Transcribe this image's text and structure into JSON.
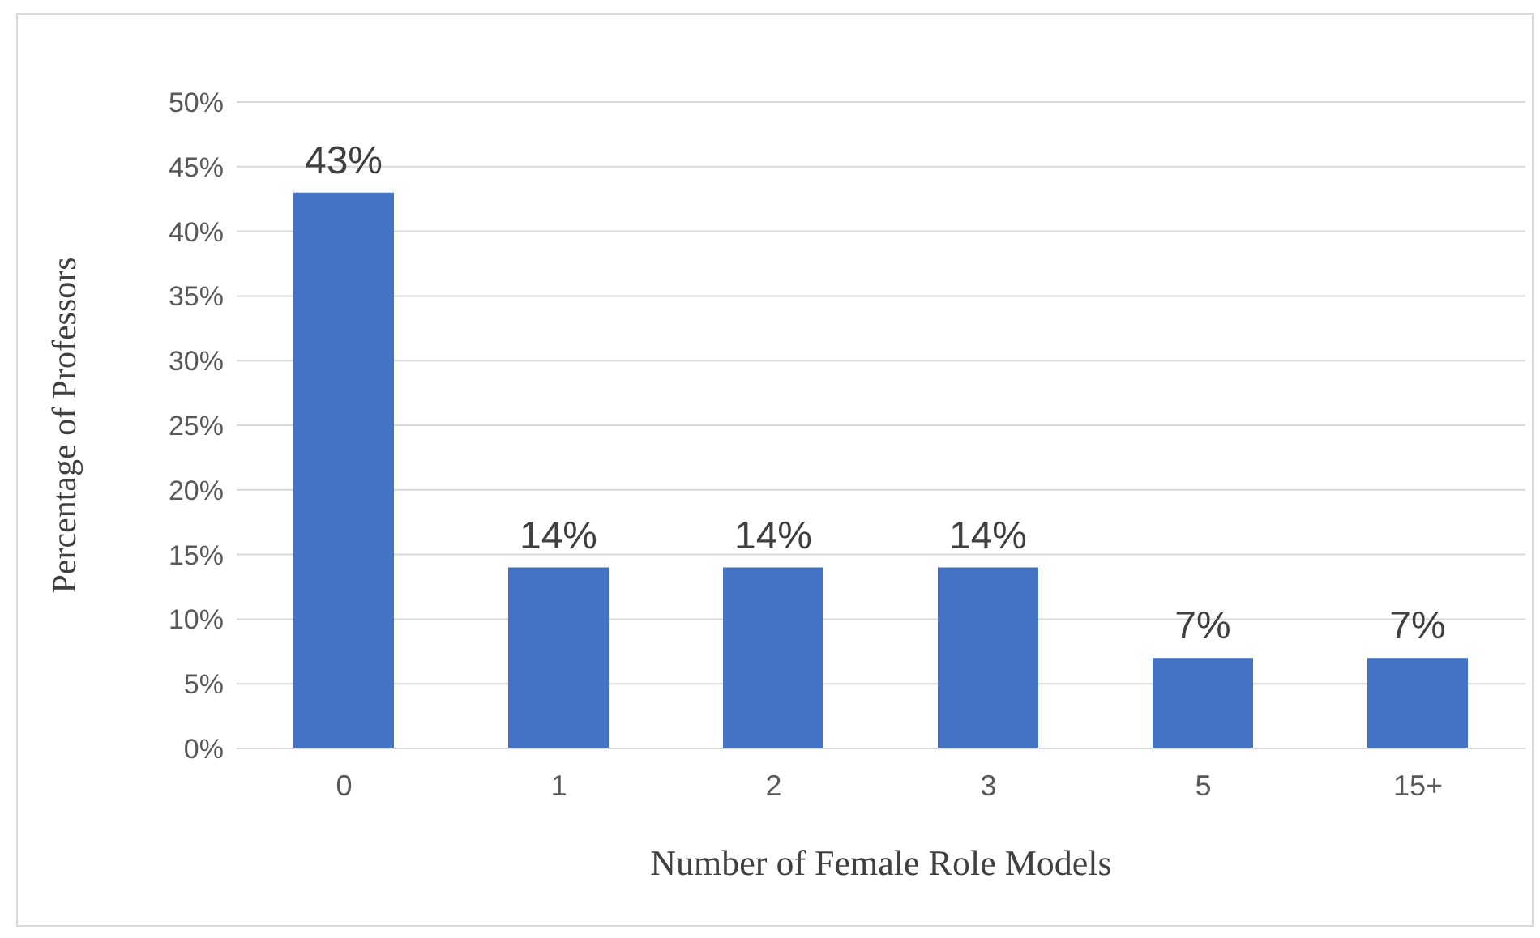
{
  "chart_data": {
    "type": "bar",
    "xlabel": "Number of Female Role Models",
    "ylabel": "Percentage of Professors",
    "categories": [
      "0",
      "1",
      "2",
      "3",
      "5",
      "15+"
    ],
    "values": [
      43,
      14,
      14,
      14,
      7,
      7
    ],
    "value_labels": [
      "43%",
      "14%",
      "14%",
      "14%",
      "7%",
      "7%"
    ],
    "color": "#4472c4",
    "ylim": [
      0,
      50
    ],
    "yticks": [
      {
        "value": 0,
        "label": "0%"
      },
      {
        "value": 5,
        "label": "5%"
      },
      {
        "value": 10,
        "label": "10%"
      },
      {
        "value": 15,
        "label": "15%"
      },
      {
        "value": 20,
        "label": "20%"
      },
      {
        "value": 25,
        "label": "25%"
      },
      {
        "value": 30,
        "label": "30%"
      },
      {
        "value": 35,
        "label": "35%"
      },
      {
        "value": 40,
        "label": "40%"
      },
      {
        "value": 45,
        "label": "45%"
      },
      {
        "value": 50,
        "label": "50%"
      }
    ],
    "grid": "y",
    "legend": false
  }
}
